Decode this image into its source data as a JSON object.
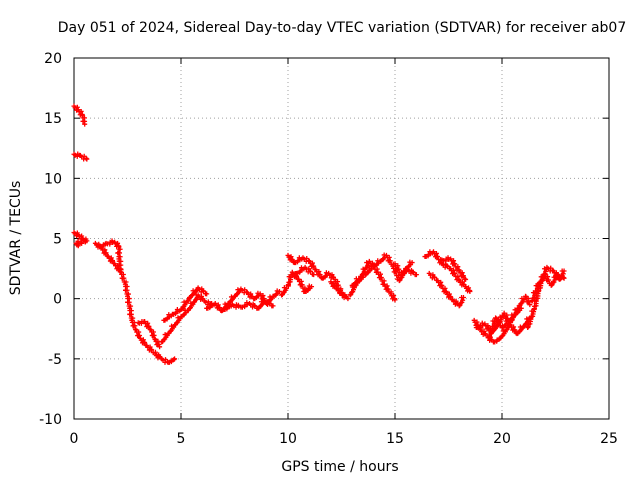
{
  "chart_data": {
    "type": "scatter",
    "title": "Day 051 of 2024, Sidereal Day-to-day VTEC variation (SDTVAR) for receiver ab07",
    "xlabel": "GPS time / hours",
    "ylabel": "SDTVAR / TECUs",
    "xlim": [
      0,
      25
    ],
    "ylim": [
      -10,
      20
    ],
    "xticks": [
      0,
      5,
      10,
      15,
      20,
      25
    ],
    "yticks": [
      -10,
      -5,
      0,
      5,
      10,
      15,
      20
    ],
    "grid": true,
    "marker": "plus",
    "series": [
      {
        "name": "SDTVAR",
        "color": "#ff0000",
        "tracks": [
          [
            [
              0.0,
              16.0
            ],
            [
              0.2,
              15.7
            ],
            [
              0.4,
              15.2
            ],
            [
              0.5,
              14.5
            ]
          ],
          [
            [
              0.0,
              12.0
            ],
            [
              0.3,
              11.9
            ],
            [
              0.6,
              11.6
            ]
          ],
          [
            [
              0.0,
              5.5
            ],
            [
              0.2,
              5.3
            ],
            [
              0.4,
              5.0
            ],
            [
              0.6,
              4.8
            ],
            [
              0.1,
              4.6
            ],
            [
              0.2,
              4.4
            ]
          ],
          [
            [
              1.0,
              4.6
            ],
            [
              1.3,
              4.2
            ],
            [
              1.6,
              3.5
            ],
            [
              1.9,
              2.9
            ],
            [
              2.2,
              2.2
            ],
            [
              2.4,
              1.2
            ],
            [
              2.5,
              0.2
            ],
            [
              2.6,
              -0.8
            ],
            [
              2.7,
              -1.8
            ],
            [
              2.9,
              -2.6
            ],
            [
              3.1,
              -3.3
            ],
            [
              3.4,
              -3.9
            ],
            [
              3.8,
              -4.6
            ],
            [
              4.1,
              -5.0
            ],
            [
              4.4,
              -5.3
            ],
            [
              4.7,
              -5.0
            ]
          ],
          [
            [
              1.2,
              4.3
            ],
            [
              1.5,
              4.6
            ],
            [
              1.9,
              4.7
            ],
            [
              2.1,
              4.3
            ],
            [
              2.1,
              3.3
            ],
            [
              2.2,
              2.4
            ]
          ],
          [
            [
              3.0,
              -2.0
            ],
            [
              3.3,
              -1.9
            ],
            [
              3.6,
              -2.6
            ],
            [
              3.8,
              -3.4
            ],
            [
              4.0,
              -4.0
            ]
          ],
          [
            [
              4.1,
              -3.6
            ],
            [
              4.4,
              -2.9
            ],
            [
              4.7,
              -2.2
            ],
            [
              5.0,
              -1.5
            ],
            [
              5.3,
              -1.0
            ],
            [
              5.6,
              -0.3
            ],
            [
              5.8,
              0.3
            ],
            [
              6.1,
              -0.2
            ],
            [
              6.4,
              -0.5
            ]
          ],
          [
            [
              4.2,
              -1.8
            ],
            [
              4.6,
              -1.3
            ],
            [
              5.0,
              -0.9
            ],
            [
              5.4,
              0.1
            ],
            [
              5.8,
              0.9
            ],
            [
              6.2,
              0.4
            ]
          ],
          [
            [
              6.2,
              -0.8
            ],
            [
              6.6,
              -0.4
            ],
            [
              6.9,
              -1.0
            ],
            [
              7.2,
              -0.4
            ],
            [
              7.5,
              0.2
            ],
            [
              7.8,
              0.8
            ],
            [
              8.1,
              0.5
            ],
            [
              8.4,
              0.0
            ],
            [
              8.7,
              0.4
            ],
            [
              9.0,
              -0.4
            ],
            [
              9.3,
              0.2
            ],
            [
              9.6,
              0.6
            ]
          ],
          [
            [
              7.0,
              -0.9
            ],
            [
              7.4,
              -0.5
            ],
            [
              7.8,
              -0.7
            ],
            [
              8.2,
              -0.4
            ],
            [
              8.6,
              -0.8
            ],
            [
              8.9,
              -0.2
            ],
            [
              9.3,
              -0.6
            ]
          ],
          [
            [
              9.7,
              0.3
            ],
            [
              10.0,
              1.1
            ],
            [
              10.2,
              2.2
            ],
            [
              10.5,
              1.6
            ],
            [
              10.8,
              0.6
            ],
            [
              11.1,
              1.0
            ]
          ],
          [
            [
              10.0,
              3.6
            ],
            [
              10.3,
              3.0
            ],
            [
              10.7,
              3.4
            ],
            [
              11.0,
              3.1
            ],
            [
              11.3,
              2.4
            ],
            [
              11.6,
              1.7
            ],
            [
              11.9,
              2.1
            ],
            [
              12.2,
              1.6
            ],
            [
              12.5,
              0.4
            ],
            [
              12.8,
              0.0
            ]
          ],
          [
            [
              10.4,
              2.1
            ],
            [
              10.8,
              2.6
            ],
            [
              11.2,
              2.0
            ]
          ],
          [
            [
              12.0,
              1.4
            ],
            [
              12.3,
              0.8
            ],
            [
              12.6,
              0.3
            ]
          ],
          [
            [
              12.9,
              0.3
            ],
            [
              13.2,
              1.3
            ],
            [
              13.6,
              2.0
            ],
            [
              14.0,
              2.7
            ],
            [
              14.3,
              3.1
            ],
            [
              14.6,
              3.6
            ],
            [
              14.9,
              2.7
            ],
            [
              15.2,
              1.5
            ],
            [
              15.5,
              2.5
            ],
            [
              15.8,
              3.0
            ]
          ],
          [
            [
              13.0,
              1.1
            ],
            [
              13.4,
              1.8
            ],
            [
              13.8,
              3.1
            ],
            [
              14.2,
              2.2
            ],
            [
              14.5,
              1.2
            ],
            [
              14.8,
              0.4
            ],
            [
              15.0,
              -0.1
            ]
          ],
          [
            [
              15.0,
              2.9
            ],
            [
              15.3,
              2.0
            ],
            [
              15.6,
              2.4
            ],
            [
              16.0,
              2.0
            ]
          ],
          [
            [
              16.4,
              3.5
            ],
            [
              16.8,
              3.9
            ],
            [
              17.2,
              2.9
            ],
            [
              17.6,
              2.5
            ],
            [
              18.0,
              1.5
            ],
            [
              18.3,
              1.0
            ],
            [
              18.5,
              0.6
            ]
          ],
          [
            [
              16.6,
              2.1
            ],
            [
              17.0,
              1.5
            ],
            [
              17.4,
              0.5
            ],
            [
              17.7,
              -0.1
            ],
            [
              18.0,
              -0.6
            ],
            [
              18.2,
              0.1
            ]
          ],
          [
            [
              17.2,
              3.2
            ],
            [
              17.6,
              3.3
            ],
            [
              18.0,
              2.3
            ],
            [
              18.3,
              1.6
            ]
          ],
          [
            [
              18.7,
              -1.8
            ],
            [
              19.0,
              -2.6
            ],
            [
              19.3,
              -3.1
            ],
            [
              19.6,
              -3.6
            ],
            [
              19.9,
              -3.3
            ],
            [
              20.2,
              -2.6
            ],
            [
              20.5,
              -1.6
            ],
            [
              20.8,
              -0.6
            ],
            [
              21.1,
              0.2
            ],
            [
              21.3,
              -0.5
            ]
          ],
          [
            [
              18.8,
              -2.4
            ],
            [
              19.2,
              -2.1
            ],
            [
              19.5,
              -2.8
            ],
            [
              19.8,
              -2.2
            ],
            [
              20.1,
              -1.2
            ],
            [
              20.4,
              -2.2
            ],
            [
              20.7,
              -2.9
            ],
            [
              21.0,
              -2.3
            ],
            [
              21.3,
              -1.6
            ]
          ],
          [
            [
              19.4,
              -3.2
            ],
            [
              19.7,
              -1.6
            ],
            [
              20.0,
              -2.4
            ],
            [
              20.3,
              -1.9
            ],
            [
              20.6,
              -1.3
            ],
            [
              20.9,
              -0.8
            ]
          ],
          [
            [
              21.2,
              -2.4
            ],
            [
              21.5,
              -0.9
            ],
            [
              21.7,
              0.6
            ],
            [
              21.9,
              1.8
            ],
            [
              22.1,
              2.6
            ],
            [
              22.4,
              2.3
            ],
            [
              22.7,
              1.6
            ],
            [
              22.9,
              2.3
            ]
          ],
          [
            [
              21.4,
              -0.2
            ],
            [
              21.7,
              1.2
            ],
            [
              22.0,
              2.0
            ],
            [
              22.3,
              1.1
            ],
            [
              22.6,
              2.0
            ],
            [
              22.9,
              1.7
            ]
          ]
        ]
      }
    ]
  }
}
